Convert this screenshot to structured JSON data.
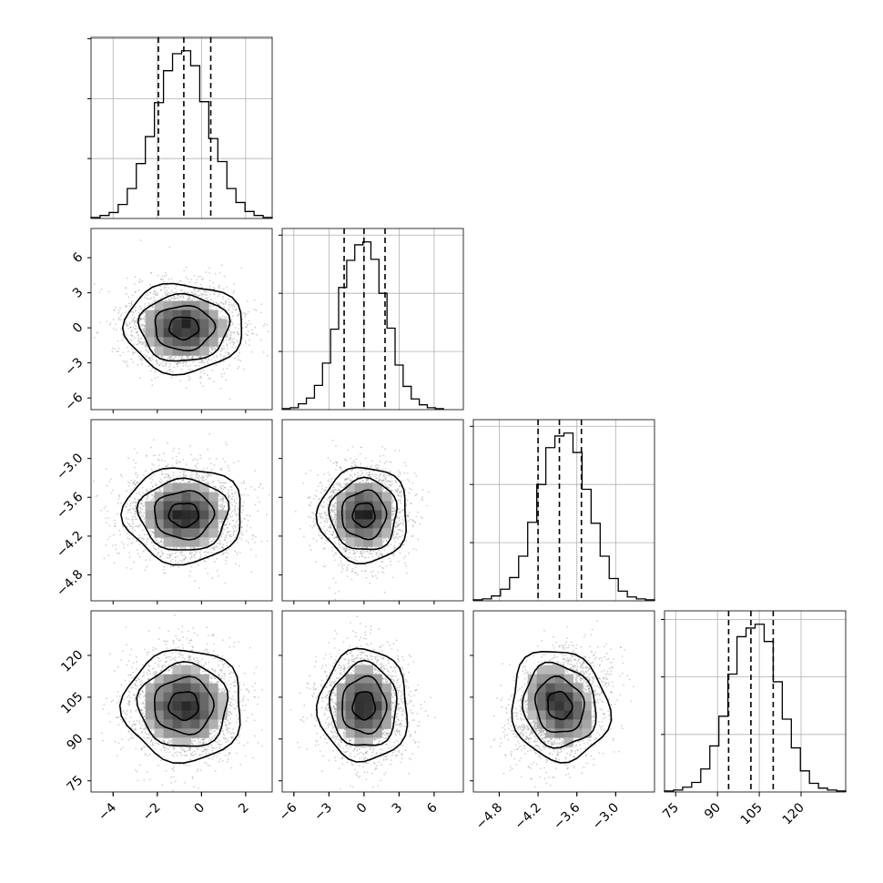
{
  "chart_data": {
    "type": "corner",
    "grid": true,
    "params": [
      {
        "range": [
          -5,
          3.2
        ],
        "ticks": [
          -4,
          -2,
          0,
          2
        ],
        "tick_labels": [
          "−4",
          "−2",
          "0",
          "2"
        ],
        "mean": -0.8,
        "std": 1.2,
        "quantiles": [
          -1.95,
          -0.8,
          0.42
        ]
      },
      {
        "range": [
          -7,
          8.5
        ],
        "ticks": [
          -6,
          -3,
          0,
          3,
          6
        ],
        "tick_labels": [
          "−6",
          "−3",
          "0",
          "3",
          "6"
        ],
        "mean": 0.0,
        "std": 1.7,
        "quantiles": [
          -1.7,
          0.0,
          1.8
        ]
      },
      {
        "range": [
          -5.2,
          -2.4
        ],
        "ticks": [
          -4.8,
          -4.2,
          -3.6,
          -3.0
        ],
        "tick_labels": [
          "−4.8",
          "−4.2",
          "−3.6",
          "−3.0"
        ],
        "mean": -3.87,
        "std": 0.33,
        "quantiles": [
          -4.2,
          -3.87,
          -3.53
        ]
      },
      {
        "range": [
          71,
          136
        ],
        "ticks": [
          75,
          90,
          105,
          120
        ],
        "tick_labels": [
          "75",
          "90",
          "105",
          "120"
        ],
        "mean": 102.0,
        "std": 9.0,
        "quantiles": [
          94,
          102,
          110
        ]
      }
    ],
    "histograms": [
      {
        "param": 0,
        "bin_edges": [
          -5.0,
          -4.59,
          -4.18,
          -3.77,
          -3.36,
          -2.95,
          -2.54,
          -2.13,
          -1.72,
          -1.31,
          -0.9,
          -0.49,
          -0.08,
          0.33,
          0.74,
          1.15,
          1.56,
          1.97,
          2.38,
          2.79,
          3.2
        ],
        "counts": [
          1,
          3,
          6,
          14,
          30,
          55,
          82,
          116,
          148,
          165,
          168,
          153,
          117,
          80,
          57,
          30,
          16,
          7,
          3,
          1
        ]
      },
      {
        "param": 1,
        "bin_edges": [
          -7.0,
          -6.31,
          -5.62,
          -4.93,
          -4.24,
          -3.55,
          -2.86,
          -2.17,
          -1.48,
          -0.79,
          -0.1,
          0.59,
          1.28,
          1.97,
          2.66,
          3.35,
          4.04,
          4.73,
          5.42,
          6.11,
          6.8
        ],
        "counts": [
          1,
          2,
          6,
          12,
          25,
          48,
          83,
          126,
          154,
          170,
          173,
          155,
          120,
          84,
          46,
          24,
          11,
          5,
          2,
          1
        ]
      },
      {
        "param": 2,
        "bin_edges": [
          -5.2,
          -5.06,
          -4.92,
          -4.78,
          -4.64,
          -4.5,
          -4.36,
          -4.22,
          -4.08,
          -3.94,
          -3.8,
          -3.66,
          -3.52,
          -3.38,
          -3.24,
          -3.1,
          -2.96,
          -2.82,
          -2.68,
          -2.54,
          -2.4
        ],
        "counts": [
          1,
          2,
          5,
          12,
          24,
          46,
          81,
          120,
          158,
          170,
          173,
          153,
          115,
          80,
          46,
          23,
          10,
          4,
          2,
          1
        ]
      },
      {
        "param": 3,
        "bin_edges": [
          71.0,
          74.25,
          77.5,
          80.75,
          84.0,
          87.25,
          90.5,
          93.75,
          97.0,
          100.25,
          103.5,
          106.75,
          110.0,
          113.25,
          116.5,
          119.75,
          123.0,
          126.25,
          129.5,
          132.75,
          136.0
        ],
        "counts": [
          1,
          2,
          5,
          10,
          24,
          48,
          79,
          123,
          162,
          171,
          175,
          157,
          115,
          76,
          46,
          22,
          9,
          4,
          2,
          1
        ]
      }
    ],
    "contours": [
      {
        "x": 0,
        "y": 1,
        "center": [
          -0.8,
          0.0
        ],
        "sigma": [
          1.2,
          1.7
        ],
        "rho": 0.0
      },
      {
        "x": 0,
        "y": 2,
        "center": [
          -0.8,
          -3.87
        ],
        "sigma": [
          1.2,
          0.33
        ],
        "rho": 0.0
      },
      {
        "x": 1,
        "y": 2,
        "center": [
          0.0,
          -3.87
        ],
        "sigma": [
          1.7,
          0.33
        ],
        "rho": 0.0
      },
      {
        "x": 0,
        "y": 3,
        "center": [
          -0.8,
          102.0
        ],
        "sigma": [
          1.2,
          9.0
        ],
        "rho": 0.0
      },
      {
        "x": 1,
        "y": 3,
        "center": [
          0.0,
          102.0
        ],
        "sigma": [
          1.7,
          9.0
        ],
        "rho": 0.0
      },
      {
        "x": 2,
        "y": 3,
        "center": [
          -3.87,
          102.0
        ],
        "sigma": [
          0.33,
          9.0
        ],
        "rho": -0.3
      }
    ],
    "contour_levels_sigma": [
      0.5,
      1.0,
      1.5,
      2.0
    ],
    "quantiles": [
      0.16,
      0.5,
      0.84
    ]
  }
}
